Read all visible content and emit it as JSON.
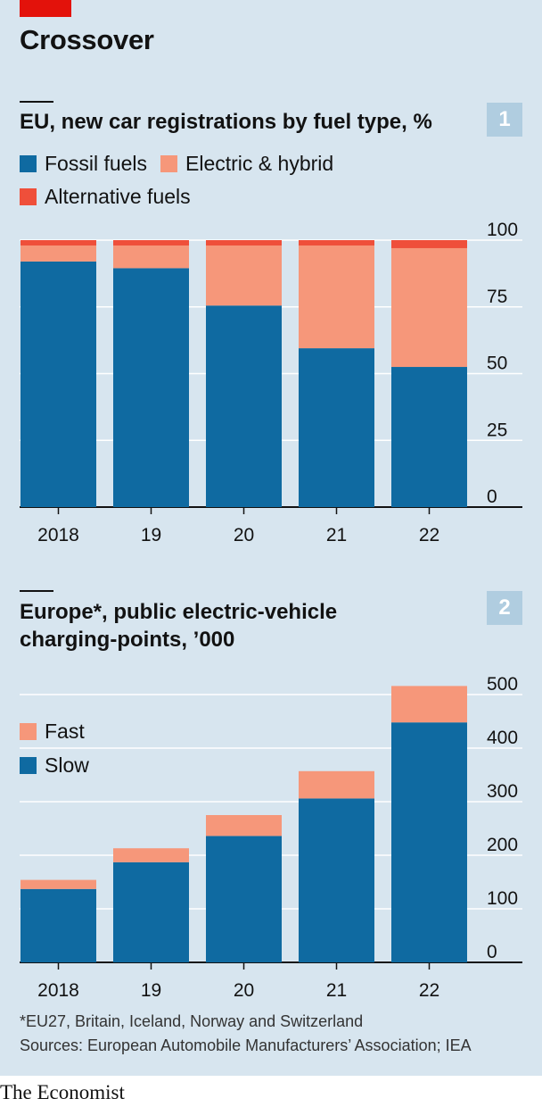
{
  "header": {
    "title": "Crossover"
  },
  "charts": [
    {
      "number": "1",
      "title_lines": [
        "EU, new car registrations by fuel type, %"
      ],
      "legend": [
        {
          "label": "Fossil fuels",
          "color": "#0f6aa1"
        },
        {
          "label": "Electric & hybrid",
          "color": "#f6977a"
        },
        {
          "label": "Alternative fuels",
          "color": "#ef4f3a"
        }
      ]
    },
    {
      "number": "2",
      "title_lines": [
        "Europe*, public electric-vehicle",
        "charging-points, ’000"
      ],
      "legend": [
        {
          "label": "Fast",
          "color": "#f6977a"
        },
        {
          "label": "Slow",
          "color": "#0f6aa1"
        }
      ]
    }
  ],
  "chart_data": [
    {
      "type": "bar",
      "stacked": true,
      "title": "EU, new car registrations by fuel type, %",
      "categories": [
        "2018",
        "19",
        "20",
        "21",
        "22"
      ],
      "series": [
        {
          "name": "Fossil fuels",
          "color": "#0f6aa1",
          "values": [
            92,
            89.5,
            75.5,
            59.5,
            52.5
          ]
        },
        {
          "name": "Electric & hybrid",
          "color": "#f6977a",
          "values": [
            6,
            8.5,
            22.5,
            38.5,
            44.5
          ]
        },
        {
          "name": "Alternative fuels",
          "color": "#ef4f3a",
          "values": [
            2,
            2,
            2,
            2,
            3
          ]
        }
      ],
      "yticks": [
        "100",
        "75",
        "50",
        "25",
        "0"
      ],
      "ylim": [
        0,
        100
      ],
      "yaxis_side": "right",
      "grid": true
    },
    {
      "type": "bar",
      "stacked": true,
      "title": "Europe*, public electric-vehicle charging-points, ’000",
      "categories": [
        "2018",
        "19",
        "20",
        "21",
        "22"
      ],
      "series": [
        {
          "name": "Slow",
          "color": "#0f6aa1",
          "values": [
            137,
            187,
            236,
            306,
            448
          ]
        },
        {
          "name": "Fast",
          "color": "#f6977a",
          "values": [
            17,
            26,
            39,
            51,
            68
          ]
        }
      ],
      "yticks": [
        "500",
        "400",
        "300",
        "200",
        "100",
        "0"
      ],
      "ylim": [
        0,
        500
      ],
      "yaxis_side": "right",
      "grid": true
    }
  ],
  "footer": {
    "note": "*EU27, Britain, Iceland, Norway and Switzerland",
    "sources": "Sources: European Automobile Manufacturers’ Association; IEA",
    "brand": "The Economist"
  }
}
